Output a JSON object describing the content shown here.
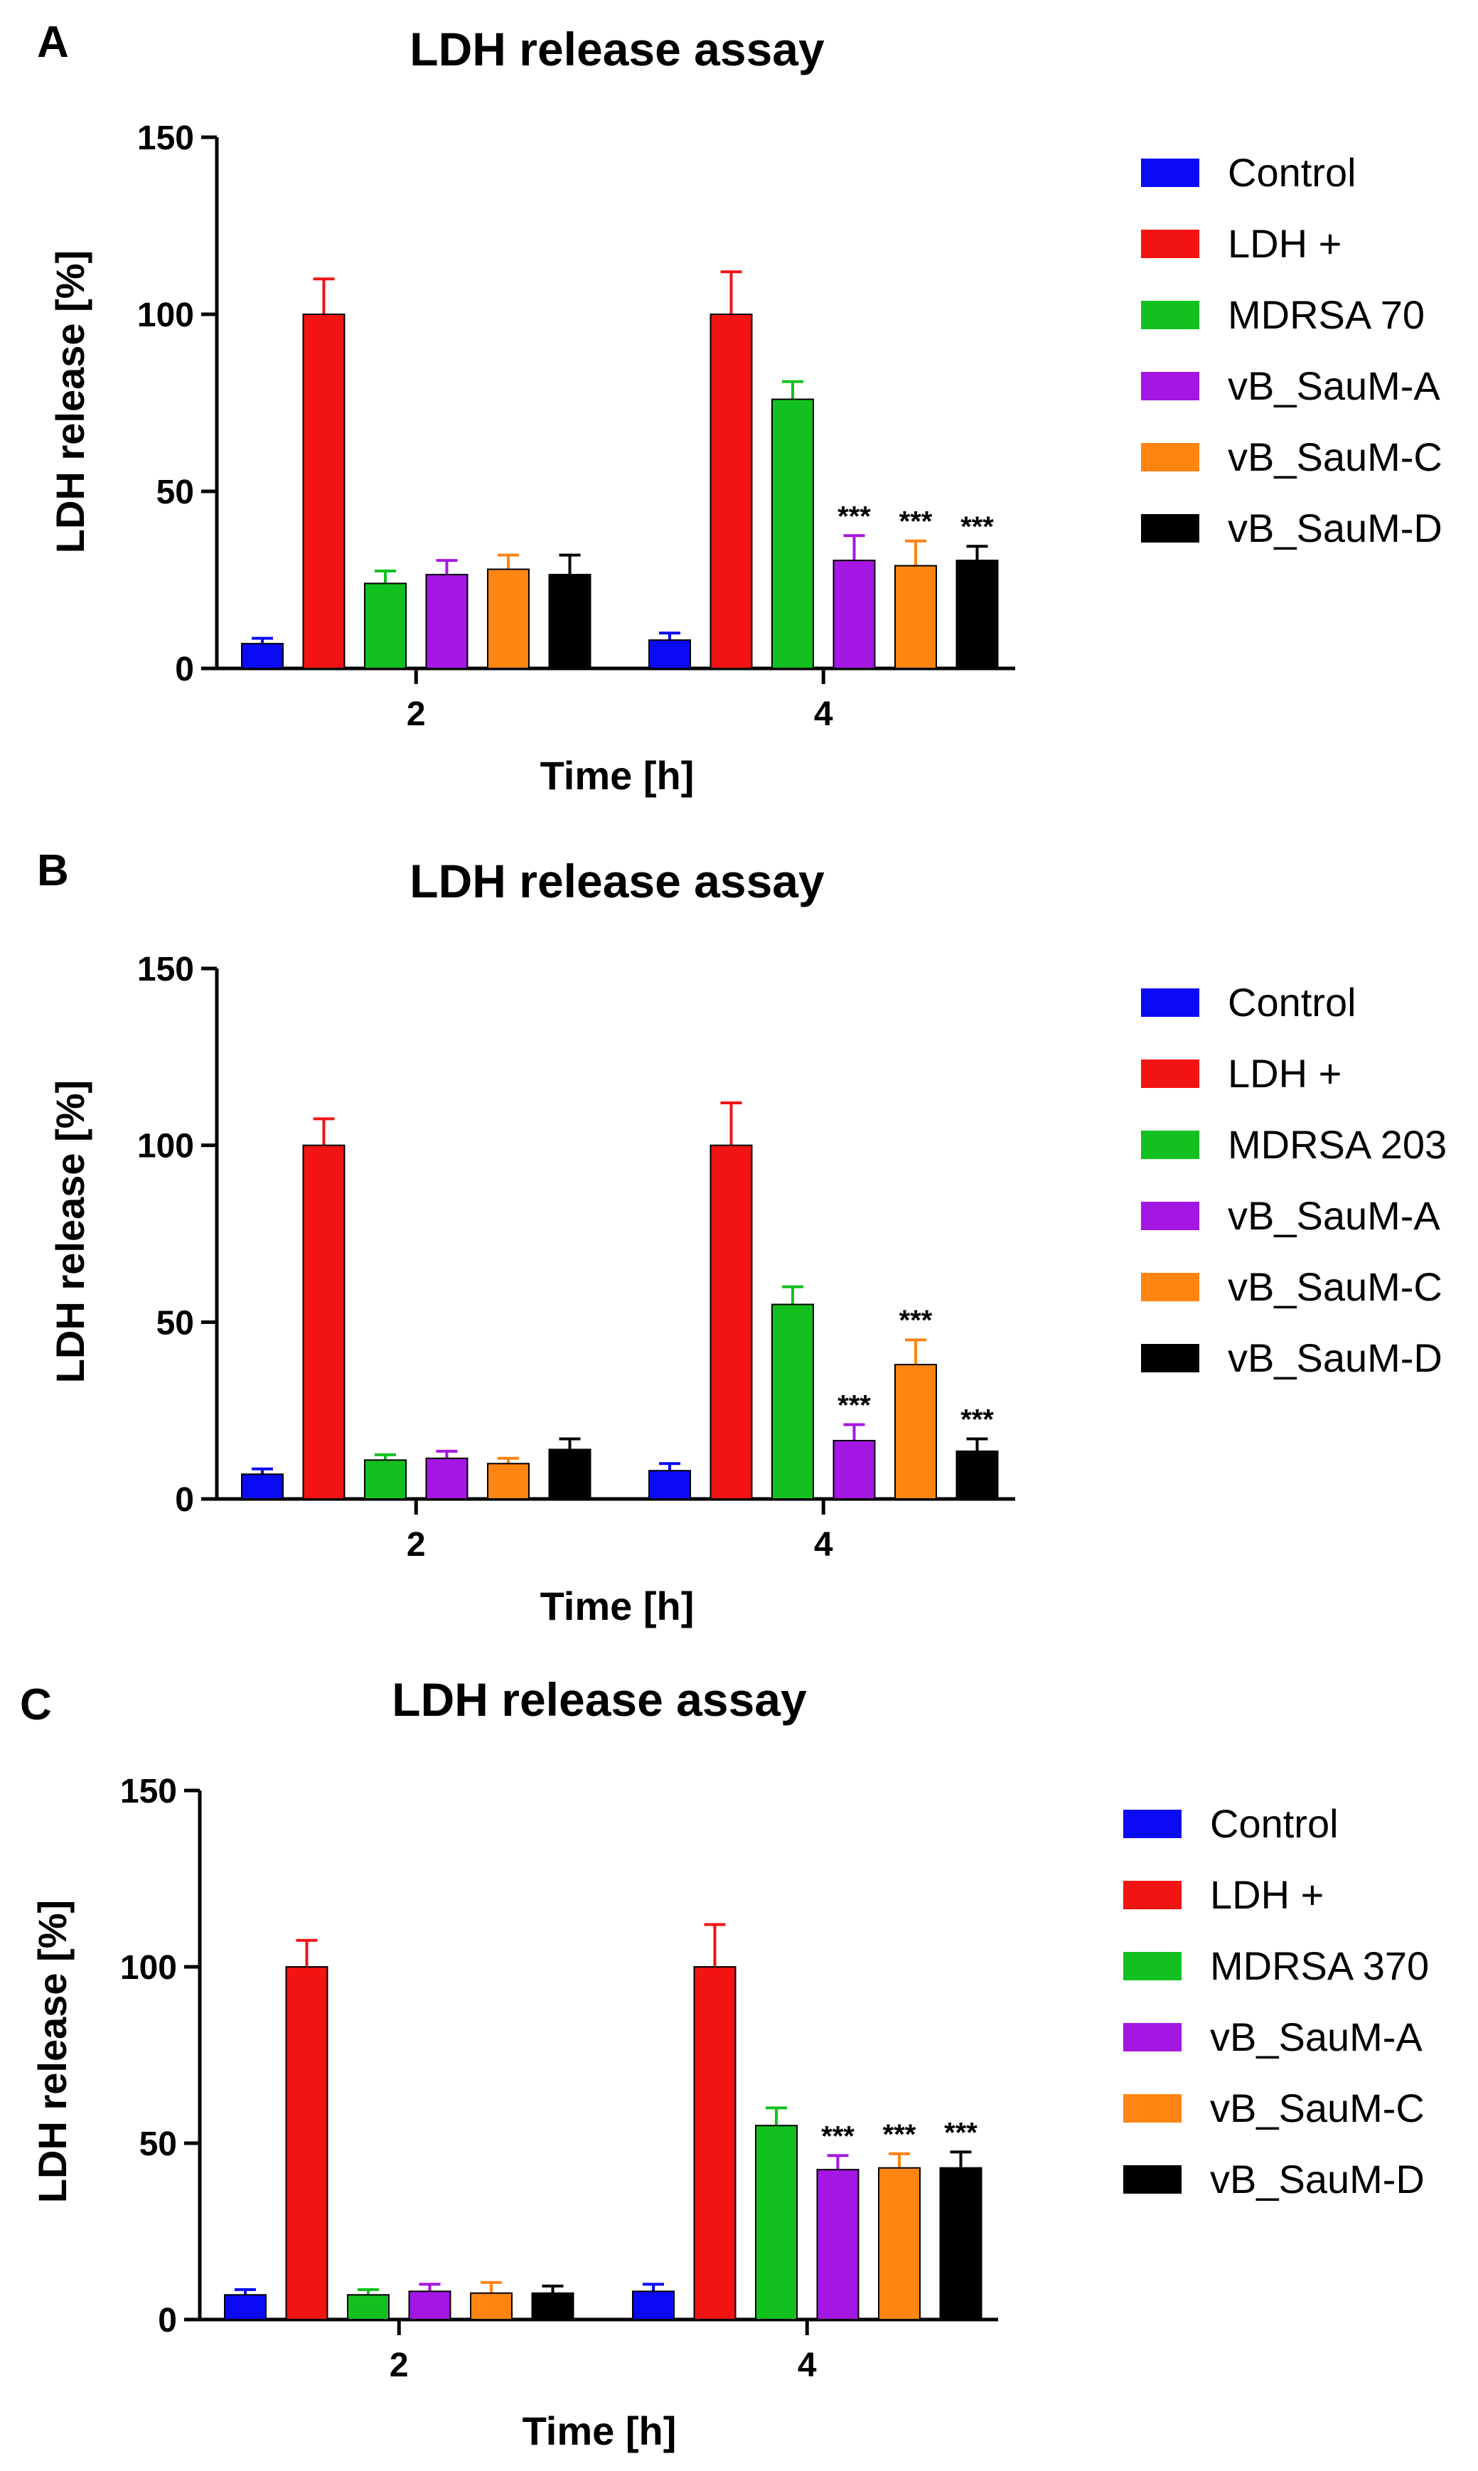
{
  "colors": {
    "Control": "#0a0af5",
    "LDH +": "#f21313",
    "MDRSA": "#12c11f",
    "vB_SauM-A": "#a416e2",
    "vB_SauM-C": "#ff8412",
    "vB_SauM-D": "#000000"
  },
  "chart_data": [
    {
      "panel": "A",
      "type": "bar",
      "title": "LDH release assay",
      "xlabel": "Time [h]",
      "ylabel": "LDH release [%]",
      "ylim": [
        0,
        150
      ],
      "yticks": [
        "0",
        "50",
        "100",
        "150"
      ],
      "categories": [
        "2",
        "4"
      ],
      "series": [
        {
          "name": "Control",
          "color_key": "Control",
          "values": [
            7,
            8
          ],
          "errors": [
            1.5,
            2
          ],
          "sig": [
            "",
            ""
          ]
        },
        {
          "name": "LDH +",
          "color_key": "LDH +",
          "values": [
            100,
            100
          ],
          "errors": [
            10,
            12
          ],
          "sig": [
            "",
            ""
          ]
        },
        {
          "name": "MDRSA 70",
          "color_key": "MDRSA",
          "values": [
            24,
            76
          ],
          "errors": [
            3.5,
            5
          ],
          "sig": [
            "",
            ""
          ]
        },
        {
          "name": "vB_SauM-A",
          "color_key": "vB_SauM-A",
          "values": [
            26.5,
            30.5
          ],
          "errors": [
            4,
            7
          ],
          "sig": [
            "",
            "***"
          ]
        },
        {
          "name": "vB_SauM-C",
          "color_key": "vB_SauM-C",
          "values": [
            28,
            29
          ],
          "errors": [
            4,
            7
          ],
          "sig": [
            "",
            "***"
          ]
        },
        {
          "name": "vB_SauM-D",
          "color_key": "vB_SauM-D",
          "values": [
            26.5,
            30.5
          ],
          "errors": [
            5.5,
            4
          ],
          "sig": [
            "",
            "***"
          ]
        }
      ]
    },
    {
      "panel": "B",
      "type": "bar",
      "title": "LDH release assay",
      "xlabel": "Time [h]",
      "ylabel": "LDH release [%]",
      "ylim": [
        0,
        150
      ],
      "yticks": [
        "0",
        "50",
        "100",
        "150"
      ],
      "categories": [
        "2",
        "4"
      ],
      "series": [
        {
          "name": "Control",
          "color_key": "Control",
          "values": [
            7,
            8
          ],
          "errors": [
            1.5,
            2
          ],
          "sig": [
            "",
            ""
          ]
        },
        {
          "name": "LDH +",
          "color_key": "LDH +",
          "values": [
            100,
            100
          ],
          "errors": [
            7.5,
            12
          ],
          "sig": [
            "",
            ""
          ]
        },
        {
          "name": "MDRSA 203",
          "color_key": "MDRSA",
          "values": [
            11,
            55
          ],
          "errors": [
            1.5,
            5
          ],
          "sig": [
            "",
            ""
          ]
        },
        {
          "name": "vB_SauM-A",
          "color_key": "vB_SauM-A",
          "values": [
            11.5,
            16.5
          ],
          "errors": [
            2,
            4.5
          ],
          "sig": [
            "",
            "***"
          ]
        },
        {
          "name": "vB_SauM-C",
          "color_key": "vB_SauM-C",
          "values": [
            10,
            38
          ],
          "errors": [
            1.5,
            7
          ],
          "sig": [
            "",
            "***"
          ]
        },
        {
          "name": "vB_SauM-D",
          "color_key": "vB_SauM-D",
          "values": [
            14,
            13.5
          ],
          "errors": [
            3,
            3.5
          ],
          "sig": [
            "",
            "***"
          ]
        }
      ]
    },
    {
      "panel": "C",
      "type": "bar",
      "title": "LDH release assay",
      "xlabel": "Time [h]",
      "ylabel": "LDH release [%]",
      "ylim": [
        0,
        150
      ],
      "yticks": [
        "0",
        "50",
        "100",
        "150"
      ],
      "categories": [
        "2",
        "4"
      ],
      "series": [
        {
          "name": "Control",
          "color_key": "Control",
          "values": [
            7,
            8
          ],
          "errors": [
            1.5,
            2
          ],
          "sig": [
            "",
            ""
          ]
        },
        {
          "name": "LDH +",
          "color_key": "LDH +",
          "values": [
            100,
            100
          ],
          "errors": [
            7.5,
            12
          ],
          "sig": [
            "",
            ""
          ]
        },
        {
          "name": "MDRSA 370",
          "color_key": "MDRSA",
          "values": [
            7,
            55
          ],
          "errors": [
            1.5,
            5
          ],
          "sig": [
            "",
            ""
          ]
        },
        {
          "name": "vB_SauM-A",
          "color_key": "vB_SauM-A",
          "values": [
            8,
            42.5
          ],
          "errors": [
            2,
            4
          ],
          "sig": [
            "",
            "***"
          ]
        },
        {
          "name": "vB_SauM-C",
          "color_key": "vB_SauM-C",
          "values": [
            7.5,
            43
          ],
          "errors": [
            3,
            4
          ],
          "sig": [
            "",
            "***"
          ]
        },
        {
          "name": "vB_SauM-D",
          "color_key": "vB_SauM-D",
          "values": [
            7.5,
            43
          ],
          "errors": [
            2,
            4.5
          ],
          "sig": [
            "",
            "***"
          ]
        }
      ]
    }
  ]
}
